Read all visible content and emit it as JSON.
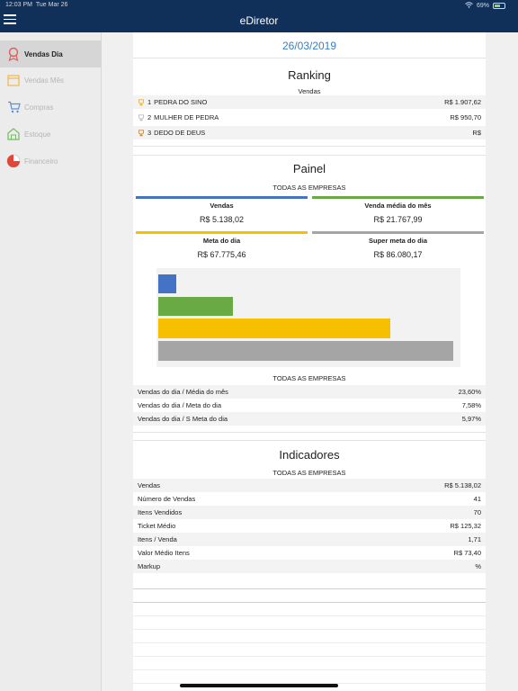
{
  "status_bar": {
    "time": "12:03 PM",
    "day": "Tue Mar 26",
    "battery": "69%"
  },
  "app": {
    "title": "eDiretor"
  },
  "sidebar": {
    "items": [
      {
        "label": "Vendas Dia",
        "icon": "award-ribbon-icon",
        "active": true
      },
      {
        "label": "Vendas Mês",
        "icon": "calendar-icon",
        "active": false
      },
      {
        "label": "Compras",
        "icon": "shopping-cart-icon",
        "active": false
      },
      {
        "label": "Estoque",
        "icon": "warehouse-icon",
        "active": false
      },
      {
        "label": "Financeiro",
        "icon": "pie-chart-icon",
        "active": false
      }
    ]
  },
  "main": {
    "date": "26/03/2019",
    "ranking": {
      "title": "Ranking",
      "subtitle": "Vendas",
      "items": [
        {
          "pos": "1",
          "name": "PEDRA DO SINO",
          "value": "R$ 1.907,62",
          "trophy_color": "#e6b33a"
        },
        {
          "pos": "2",
          "name": "MULHER DE PEDRA",
          "value": "R$ 950,70",
          "trophy_color": "#bdbdbd"
        },
        {
          "pos": "3",
          "name": "DEDO DE DEUS",
          "value": "R$",
          "trophy_color": "#c98a3c"
        }
      ]
    },
    "painel": {
      "title": "Painel",
      "subtitle": "TODAS AS EMPRESAS",
      "stats": [
        {
          "label": "Vendas",
          "value": "R$ 5.138,02",
          "color": "#4472c4"
        },
        {
          "label": "Venda média do mês",
          "value": "R$ 21.767,99",
          "color": "#6aaa45"
        },
        {
          "label": "Meta do dia",
          "value": "R$ 67.775,46",
          "color": "#f6c000"
        },
        {
          "label": "Super meta do dia",
          "value": "R$ 86.080,17",
          "color": "#a5a5a5"
        }
      ],
      "chart_subtitle": "TODAS AS EMPRESAS",
      "ratios": [
        {
          "label": "Vendas do dia / Média do mês",
          "value": "23,60%"
        },
        {
          "label": "Vendas do dia / Meta do dia",
          "value": "7,58%"
        },
        {
          "label": "Vendas do dia / S Meta do dia",
          "value": "5,97%"
        }
      ]
    },
    "indicadores": {
      "title": "Indicadores",
      "subtitle": "TODAS AS EMPRESAS",
      "rows": [
        {
          "label": "Vendas",
          "value": "R$ 5.138,02"
        },
        {
          "label": "Número de Vendas",
          "value": "41"
        },
        {
          "label": "Itens Vendidos",
          "value": "70"
        },
        {
          "label": "Ticket Médio",
          "value": "R$ 125,32"
        },
        {
          "label": "Itens / Venda",
          "value": "1,71"
        },
        {
          "label": "Valor Médio Itens",
          "value": "R$ 73,40"
        },
        {
          "label": "Markup",
          "value": "%"
        }
      ]
    }
  },
  "chart_data": {
    "type": "bar",
    "orientation": "horizontal",
    "categories": [
      "Vendas",
      "Venda média do mês",
      "Meta do dia",
      "Super meta do dia"
    ],
    "values": [
      5138.02,
      21767.99,
      67775.46,
      86080.17
    ],
    "colors": [
      "#4472c4",
      "#6aaa45",
      "#f6c000",
      "#a5a5a5"
    ],
    "grid": false,
    "legend": "none"
  }
}
